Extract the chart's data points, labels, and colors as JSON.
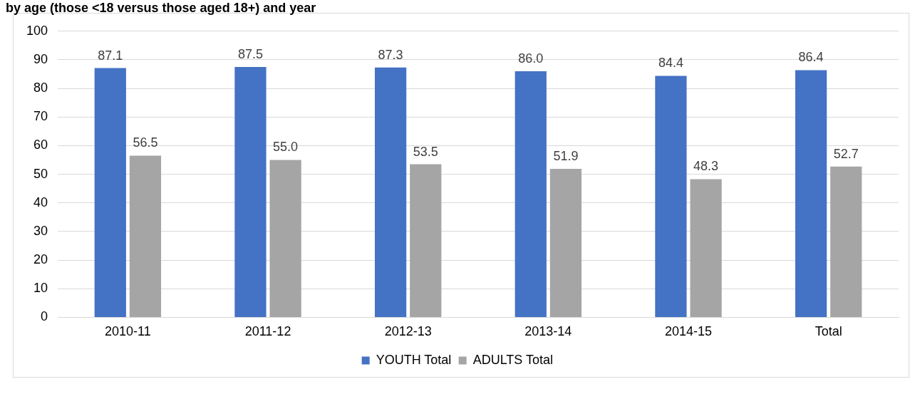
{
  "chart_data": {
    "type": "bar",
    "title": "by age (those <18 versus those aged 18+) and year",
    "categories": [
      "2010-11",
      "2011-12",
      "2012-13",
      "2013-14",
      "2014-15",
      "Total"
    ],
    "series": [
      {
        "name": "YOUTH Total",
        "color": "#4472c4",
        "values": [
          87.1,
          87.5,
          87.3,
          86.0,
          84.4,
          86.4
        ],
        "value_labels": [
          "87.1",
          "87.5",
          "87.3",
          "86.0",
          "84.4",
          "86.4"
        ]
      },
      {
        "name": "ADULTS Total",
        "color": "#a5a5a5",
        "values": [
          56.5,
          55.0,
          53.5,
          51.9,
          48.3,
          52.7
        ],
        "value_labels": [
          "56.5",
          "55.0",
          "53.5",
          "51.9",
          "48.3",
          "52.7"
        ]
      }
    ],
    "ylim": [
      0,
      100
    ],
    "yticks": [
      0,
      10,
      20,
      30,
      40,
      50,
      60,
      70,
      80,
      90,
      100
    ],
    "grid": "y",
    "legend": "bottom"
  }
}
